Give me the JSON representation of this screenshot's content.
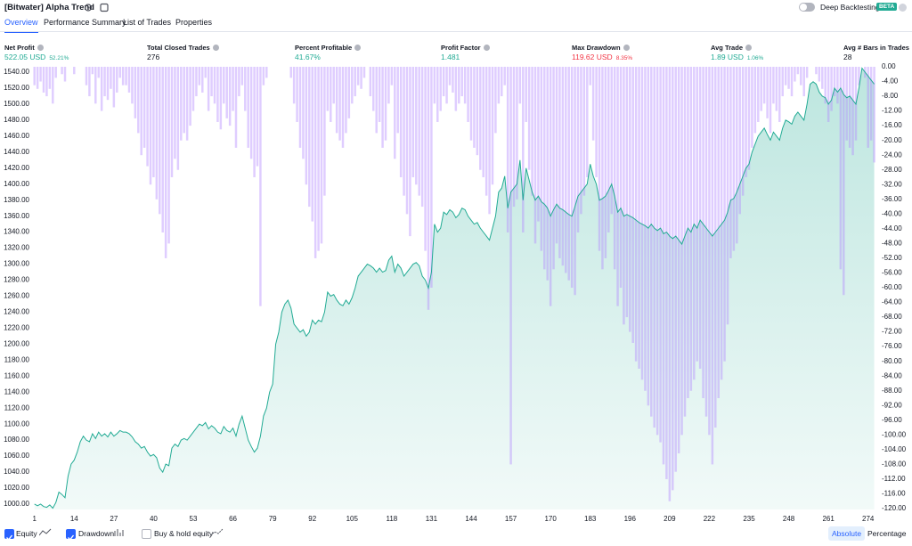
{
  "header": {
    "title": "[Bitwater] Alpha Trend",
    "toggle_label": "Deep Backtesting",
    "badge": "BETA"
  },
  "tabs": [
    {
      "label": "Overview",
      "active": true
    },
    {
      "label": "Performance Summary",
      "active": false
    },
    {
      "label": "List of Trades",
      "active": false
    },
    {
      "label": "Properties",
      "active": false
    }
  ],
  "metrics": [
    {
      "label": "Net Profit",
      "value": "522.05 USD",
      "sub": "52.21%",
      "color": "#22ab94"
    },
    {
      "label": "Total Closed Trades",
      "value": "276",
      "color": "#131722"
    },
    {
      "label": "Percent Profitable",
      "value": "41.67%",
      "color": "#22ab94"
    },
    {
      "label": "Profit Factor",
      "value": "1.481",
      "color": "#22ab94"
    },
    {
      "label": "Max Drawdown",
      "value": "119.62 USD",
      "sub": "8.35%",
      "color": "#f23645"
    },
    {
      "label": "Avg Trade",
      "value": "1.89 USD",
      "sub": "1.06%",
      "color": "#22ab94"
    },
    {
      "label": "Avg # Bars in Trades",
      "value": "28",
      "color": "#131722"
    }
  ],
  "chart_data": {
    "type": "combo",
    "x": [
      1,
      2,
      3,
      4,
      5,
      6,
      7,
      8,
      9,
      10,
      11,
      12,
      13,
      14,
      15,
      16,
      17,
      18,
      19,
      20,
      21,
      22,
      23,
      24,
      25,
      26,
      27,
      28,
      29,
      30,
      31,
      32,
      33,
      34,
      35,
      36,
      37,
      38,
      39,
      40,
      41,
      42,
      43,
      44,
      45,
      46,
      47,
      48,
      49,
      50,
      51,
      52,
      53,
      54,
      55,
      56,
      57,
      58,
      59,
      60,
      61,
      62,
      63,
      64,
      65,
      66,
      67,
      68,
      69,
      70,
      71,
      72,
      73,
      74,
      75,
      76,
      77,
      78,
      79,
      80,
      81,
      82,
      83,
      84,
      85,
      86,
      87,
      88,
      89,
      90,
      91,
      92,
      93,
      94,
      95,
      96,
      97,
      98,
      99,
      100,
      101,
      102,
      103,
      104,
      105,
      106,
      107,
      108,
      109,
      110,
      111,
      112,
      113,
      114,
      115,
      116,
      117,
      118,
      119,
      120,
      121,
      122,
      123,
      124,
      125,
      126,
      127,
      128,
      129,
      130,
      131,
      132,
      133,
      134,
      135,
      136,
      137,
      138,
      139,
      140,
      141,
      142,
      143,
      144,
      145,
      146,
      147,
      148,
      149,
      150,
      151,
      152,
      153,
      154,
      155,
      156,
      157,
      158,
      159,
      160,
      161,
      162,
      163,
      164,
      165,
      166,
      167,
      168,
      169,
      170,
      171,
      172,
      173,
      174,
      175,
      176,
      177,
      178,
      179,
      180,
      181,
      182,
      183,
      184,
      185,
      186,
      187,
      188,
      189,
      190,
      191,
      192,
      193,
      194,
      195,
      196,
      197,
      198,
      199,
      200,
      201,
      202,
      203,
      204,
      205,
      206,
      207,
      208,
      209,
      210,
      211,
      212,
      213,
      214,
      215,
      216,
      217,
      218,
      219,
      220,
      221,
      222,
      223,
      224,
      225,
      226,
      227,
      228,
      229,
      230,
      231,
      232,
      233,
      234,
      235,
      236,
      237,
      238,
      239,
      240,
      241,
      242,
      243,
      244,
      245,
      246,
      247,
      248,
      249,
      250,
      251,
      252,
      253,
      254,
      255,
      256,
      257,
      258,
      259,
      260,
      261,
      262,
      263,
      264,
      265,
      266,
      267,
      268,
      269,
      270,
      271,
      272,
      273,
      274,
      275,
      276
    ],
    "series": [
      {
        "name": "Equity",
        "type": "area",
        "axis": "y",
        "color": "#22ab94",
        "checked": true,
        "values": [
          1000,
          998,
          1000,
          997,
          996,
          999,
          995,
          1002,
          1015,
          1012,
          1008,
          1035,
          1050,
          1055,
          1065,
          1078,
          1085,
          1080,
          1078,
          1088,
          1082,
          1090,
          1085,
          1088,
          1084,
          1090,
          1085,
          1088,
          1092,
          1090,
          1090,
          1088,
          1084,
          1078,
          1075,
          1070,
          1072,
          1065,
          1060,
          1062,
          1058,
          1045,
          1040,
          1050,
          1048,
          1070,
          1075,
          1072,
          1080,
          1082,
          1080,
          1085,
          1090,
          1095,
          1100,
          1098,
          1102,
          1094,
          1098,
          1095,
          1090,
          1088,
          1097,
          1092,
          1090,
          1095,
          1085,
          1100,
          1110,
          1095,
          1080,
          1072,
          1065,
          1070,
          1085,
          1110,
          1120,
          1140,
          1150,
          1200,
          1215,
          1240,
          1250,
          1255,
          1245,
          1225,
          1220,
          1215,
          1218,
          1210,
          1215,
          1230,
          1225,
          1230,
          1228,
          1240,
          1265,
          1260,
          1262,
          1255,
          1250,
          1248,
          1255,
          1250,
          1258,
          1270,
          1285,
          1290,
          1295,
          1300,
          1298,
          1295,
          1290,
          1295,
          1290,
          1292,
          1305,
          1310,
          1290,
          1300,
          1295,
          1285,
          1290,
          1295,
          1300,
          1302,
          1298,
          1285,
          1280,
          1270,
          1290,
          1350,
          1340,
          1345,
          1365,
          1362,
          1368,
          1365,
          1358,
          1362,
          1370,
          1368,
          1360,
          1355,
          1350,
          1352,
          1345,
          1340,
          1335,
          1330,
          1345,
          1360,
          1390,
          1395,
          1410,
          1370,
          1390,
          1395,
          1400,
          1430,
          1380,
          1420,
          1405,
          1390,
          1380,
          1385,
          1378,
          1375,
          1370,
          1360,
          1368,
          1375,
          1370,
          1368,
          1365,
          1362,
          1360,
          1372,
          1385,
          1390,
          1395,
          1400,
          1425,
          1410,
          1400,
          1380,
          1382,
          1385,
          1392,
          1400,
          1385,
          1365,
          1370,
          1360,
          1362,
          1360,
          1358,
          1355,
          1352,
          1350,
          1348,
          1345,
          1350,
          1345,
          1342,
          1345,
          1338,
          1340,
          1335,
          1332,
          1335,
          1330,
          1325,
          1335,
          1345,
          1340,
          1350,
          1345,
          1355,
          1350,
          1345,
          1340,
          1335,
          1340,
          1345,
          1350,
          1355,
          1365,
          1380,
          1382,
          1390,
          1400,
          1410,
          1420,
          1425,
          1440,
          1450,
          1460,
          1465,
          1470,
          1462,
          1455,
          1465,
          1460,
          1455,
          1470,
          1480,
          1478,
          1475,
          1485,
          1490,
          1485,
          1480,
          1500,
          1525,
          1528,
          1525,
          1515,
          1510,
          1508,
          1500,
          1505,
          1520,
          1515,
          1520,
          1512,
          1508,
          1510,
          1505,
          1500,
          1520,
          1545,
          1540,
          1535,
          1530,
          1525
        ]
      },
      {
        "name": "Drawdown",
        "type": "bar",
        "axis": "y2",
        "color": "#b388ff",
        "checked": true,
        "values": [
          -5,
          -6,
          -4,
          -7,
          -8,
          -6,
          -10,
          -3,
          0,
          -2,
          -4,
          0,
          0,
          -2,
          0,
          0,
          0,
          -5,
          -8,
          -2,
          -10,
          -3,
          -12,
          -8,
          -9,
          -6,
          -11,
          -7,
          -3,
          -5,
          -5,
          -7,
          -10,
          -14,
          -18,
          -24,
          -22,
          -27,
          -32,
          -30,
          -36,
          -40,
          -45,
          -52,
          -48,
          -30,
          -25,
          -28,
          -20,
          -18,
          -20,
          -16,
          -12,
          -8,
          -5,
          -7,
          -3,
          -12,
          -8,
          -10,
          -15,
          -17,
          -10,
          -14,
          -16,
          -12,
          -22,
          -8,
          -5,
          -12,
          -22,
          -25,
          -30,
          -27,
          -65,
          -5,
          -3,
          0,
          0,
          0,
          0,
          0,
          0,
          0,
          -3,
          -10,
          -15,
          -22,
          -25,
          -32,
          -38,
          -42,
          -52,
          -50,
          -48,
          -35,
          -12,
          -15,
          -10,
          -18,
          -20,
          -22,
          -18,
          -14,
          -10,
          -8,
          -5,
          -6,
          -3,
          0,
          -8,
          -12,
          -18,
          -15,
          -22,
          -20,
          -10,
          -5,
          -25,
          -18,
          -30,
          -35,
          -40,
          -46,
          -30,
          -32,
          -35,
          -38,
          -50,
          -66,
          -60,
          -10,
          -15,
          -12,
          -8,
          -10,
          -5,
          -7,
          -12,
          -10,
          -8,
          -10,
          -15,
          -20,
          -22,
          -24,
          -28,
          -30,
          -35,
          -40,
          -32,
          -18,
          -10,
          -8,
          -5,
          -45,
          -108,
          -38,
          -36,
          -10,
          -45,
          -15,
          -28,
          -35,
          -48,
          -42,
          -50,
          -55,
          -58,
          -65,
          -55,
          -48,
          -52,
          -54,
          -56,
          -58,
          -60,
          -62,
          -45,
          -40,
          -35,
          -30,
          -5,
          -20,
          -30,
          -50,
          -55,
          -52,
          -45,
          -40,
          -55,
          -65,
          -60,
          -70,
          -68,
          -72,
          -75,
          -80,
          -82,
          -85,
          -88,
          -92,
          -95,
          -98,
          -100,
          -102,
          -108,
          -112,
          -118,
          -115,
          -110,
          -105,
          -100,
          -95,
          -90,
          -88,
          -85,
          -80,
          -82,
          -90,
          -95,
          -100,
          -108,
          -98,
          -90,
          -85,
          -80,
          -70,
          -52,
          -50,
          -48,
          -40,
          -35,
          -30,
          -28,
          -22,
          -18,
          -15,
          -12,
          -10,
          -14,
          -18,
          -10,
          -12,
          -15,
          -8,
          -5,
          -6,
          -8,
          -4,
          -2,
          -5,
          -8,
          -3,
          0,
          0,
          -2,
          -4,
          -6,
          -10,
          -15,
          -12,
          -8,
          -10,
          -55,
          -62,
          -20,
          -22,
          -24,
          -20,
          -5,
          0,
          -3,
          -22,
          -20,
          -26
        ]
      }
    ],
    "xlim": [
      0.5,
      277
    ],
    "xticks": [
      1,
      14,
      27,
      40,
      53,
      66,
      79,
      92,
      105,
      118,
      131,
      144,
      157,
      170,
      183,
      196,
      209,
      222,
      235,
      248,
      261,
      274
    ],
    "ylim": [
      993.3,
      1548.9
    ],
    "yticks": [
      {
        "value": 1000,
        "label": "1000.00"
      },
      {
        "value": 1020,
        "label": "1020.00"
      },
      {
        "value": 1040,
        "label": "1040.00"
      },
      {
        "value": 1060,
        "label": "1060.00"
      },
      {
        "value": 1080,
        "label": "1080.00"
      },
      {
        "value": 1100,
        "label": "1100.00"
      },
      {
        "value": 1120,
        "label": "1120.00"
      },
      {
        "value": 1140,
        "label": "1140.00"
      },
      {
        "value": 1160,
        "label": "1160.00"
      },
      {
        "value": 1180,
        "label": "1180.00"
      },
      {
        "value": 1200,
        "label": "1200.00"
      },
      {
        "value": 1220,
        "label": "1220.00"
      },
      {
        "value": 1240,
        "label": "1240.00"
      },
      {
        "value": 1260,
        "label": "1260.00"
      },
      {
        "value": 1280,
        "label": "1280.00"
      },
      {
        "value": 1300,
        "label": "1300.00"
      },
      {
        "value": 1320,
        "label": "1320.00"
      },
      {
        "value": 1340,
        "label": "1340.00"
      },
      {
        "value": 1360,
        "label": "1360.00"
      },
      {
        "value": 1380,
        "label": "1380.00"
      },
      {
        "value": 1400,
        "label": "1400.00"
      },
      {
        "value": 1420,
        "label": "1420.00"
      },
      {
        "value": 1440,
        "label": "1440.00"
      },
      {
        "value": 1460,
        "label": "1460.00"
      },
      {
        "value": 1480,
        "label": "1480.00"
      },
      {
        "value": 1500,
        "label": "1500.00"
      },
      {
        "value": 1520,
        "label": "1520.00"
      },
      {
        "value": 1540,
        "label": "1540.00"
      }
    ],
    "y2lim": [
      -120.24,
      0.48
    ],
    "y2ticks": [
      {
        "value": 0,
        "label": "0.00"
      },
      {
        "value": -4,
        "label": "-4.00"
      },
      {
        "value": -8,
        "label": "-8.00"
      },
      {
        "value": -12,
        "label": "-12.00"
      },
      {
        "value": -16,
        "label": "-16.00"
      },
      {
        "value": -20,
        "label": "-20.00"
      },
      {
        "value": -24,
        "label": "-24.00"
      },
      {
        "value": -28,
        "label": "-28.00"
      },
      {
        "value": -32,
        "label": "-32.00"
      },
      {
        "value": -36,
        "label": "-36.00"
      },
      {
        "value": -40,
        "label": "-40.00"
      },
      {
        "value": -44,
        "label": "-44.00"
      },
      {
        "value": -48,
        "label": "-48.00"
      },
      {
        "value": -52,
        "label": "-52.00"
      },
      {
        "value": -56,
        "label": "-56.00"
      },
      {
        "value": -60,
        "label": "-60.00"
      },
      {
        "value": -64,
        "label": "-64.00"
      },
      {
        "value": -68,
        "label": "-68.00"
      },
      {
        "value": -72,
        "label": "-72.00"
      },
      {
        "value": -76,
        "label": "-76.00"
      },
      {
        "value": -80,
        "label": "-80.00"
      },
      {
        "value": -84,
        "label": "-84.00"
      },
      {
        "value": -88,
        "label": "-88.00"
      },
      {
        "value": -92,
        "label": "-92.00"
      },
      {
        "value": -96,
        "label": "-96.00"
      },
      {
        "value": -100,
        "label": "-100.00"
      },
      {
        "value": -104,
        "label": "-104.00"
      },
      {
        "value": -108,
        "label": "-108.00"
      },
      {
        "value": -112,
        "label": "-112.00"
      },
      {
        "value": -116,
        "label": "-116.00"
      },
      {
        "value": -120,
        "label": "-120.00"
      }
    ],
    "grid": false
  },
  "footer": {
    "buy_hold": {
      "label": "Buy & hold equity",
      "checked": false
    },
    "scale_modes": [
      {
        "label": "Absolute",
        "active": true
      },
      {
        "label": "Percentage",
        "active": false
      }
    ]
  }
}
